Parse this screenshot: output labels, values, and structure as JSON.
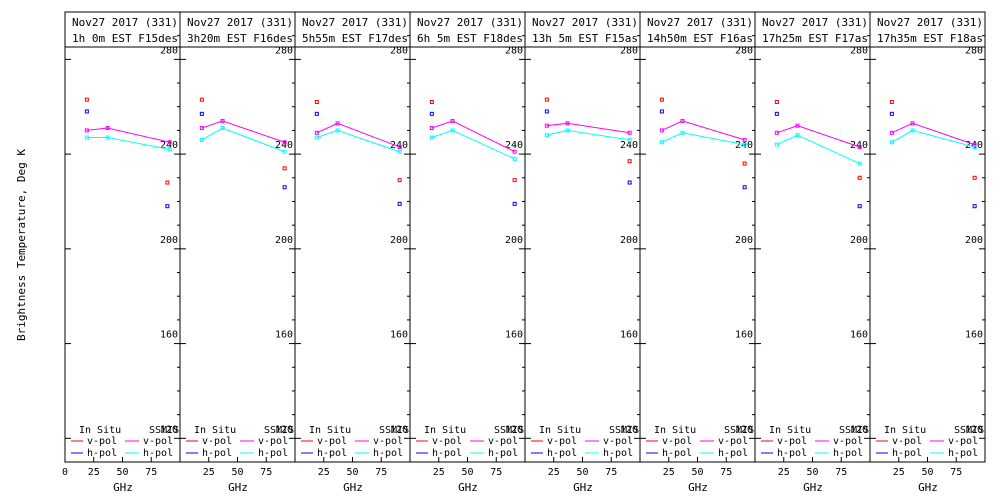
{
  "figure": {
    "ylabel": "Brightness Temperature, Deg K",
    "xlabel": "GHz",
    "colors": {
      "insitu_v": "#ff0000",
      "insitu_h": "#0000ff",
      "ssmis_v": "#ff00ff",
      "ssmis_h": "#00ffff"
    },
    "legend": {
      "insitu": "In Situ",
      "ssmis": "SSMIS",
      "vpol": "v-pol",
      "hpol": "h-pol"
    }
  },
  "chart_data": [
    {
      "type": "scatter",
      "title_line1": "Nov27 2017 (331)",
      "title_line2": "1h 0m  EST F15des",
      "xlim": [
        0,
        100
      ],
      "ylim": [
        110,
        300
      ],
      "xticks": [
        0,
        25,
        50,
        75
      ],
      "yticks": [
        120,
        160,
        200,
        240,
        280
      ],
      "insitu": {
        "freqs": [
          19,
          19,
          89,
          89
        ],
        "v": [
          263,
          228
        ],
        "h": [
          258,
          218
        ],
        "vx": [
          19,
          89
        ],
        "hx": [
          19,
          89
        ]
      },
      "ssmis": {
        "x": [
          19,
          37,
          91
        ],
        "v": [
          250,
          251,
          245
        ],
        "h": [
          247,
          247,
          242
        ]
      }
    },
    {
      "type": "scatter",
      "title_line1": "Nov27 2017 (331)",
      "title_line2": "3h20m  EST F16des",
      "xlim": [
        0,
        100
      ],
      "ylim": [
        110,
        300
      ],
      "xticks": [
        25,
        50,
        75
      ],
      "yticks": [
        120,
        160,
        200,
        240,
        280
      ],
      "insitu": {
        "v": [
          263,
          234
        ],
        "h": [
          257,
          226
        ],
        "vx": [
          19,
          91
        ],
        "hx": [
          19,
          91
        ]
      },
      "ssmis": {
        "x": [
          19,
          37,
          91
        ],
        "v": [
          251,
          254,
          245
        ],
        "h": [
          246,
          251,
          241
        ]
      }
    },
    {
      "type": "scatter",
      "title_line1": "Nov27 2017 (331)",
      "title_line2": "5h55m  EST F17des",
      "xlim": [
        0,
        100
      ],
      "ylim": [
        110,
        300
      ],
      "xticks": [
        25,
        50,
        75
      ],
      "yticks": [
        120,
        160,
        200,
        240,
        280
      ],
      "insitu": {
        "v": [
          262,
          229
        ],
        "h": [
          257,
          219
        ],
        "vx": [
          19,
          91
        ],
        "hx": [
          19,
          91
        ]
      },
      "ssmis": {
        "x": [
          19,
          37,
          91
        ],
        "v": [
          249,
          253,
          243
        ],
        "h": [
          247,
          250,
          241
        ]
      }
    },
    {
      "type": "scatter",
      "title_line1": "Nov27 2017 (331)",
      "title_line2": "6h 5m  EST F18des",
      "xlim": [
        0,
        100
      ],
      "ylim": [
        110,
        300
      ],
      "xticks": [
        25,
        50,
        75
      ],
      "yticks": [
        120,
        160,
        200,
        240,
        280
      ],
      "insitu": {
        "v": [
          262,
          229
        ],
        "h": [
          257,
          219
        ],
        "vx": [
          19,
          91
        ],
        "hx": [
          19,
          91
        ]
      },
      "ssmis": {
        "x": [
          19,
          37,
          91
        ],
        "v": [
          251,
          254,
          241
        ],
        "h": [
          247,
          250,
          238
        ]
      }
    },
    {
      "type": "scatter",
      "title_line1": "Nov27 2017 (331)",
      "title_line2": "13h 5m  EST F15asc",
      "xlim": [
        0,
        100
      ],
      "ylim": [
        110,
        300
      ],
      "xticks": [
        25,
        50,
        75
      ],
      "yticks": [
        120,
        160,
        200,
        240,
        280
      ],
      "insitu": {
        "v": [
          263,
          237
        ],
        "h": [
          258,
          228
        ],
        "vx": [
          19,
          91
        ],
        "hx": [
          19,
          91
        ]
      },
      "ssmis": {
        "x": [
          19,
          37,
          91
        ],
        "v": [
          252,
          253,
          249
        ],
        "h": [
          248,
          250,
          246
        ]
      }
    },
    {
      "type": "scatter",
      "title_line1": "Nov27 2017 (331)",
      "title_line2": "14h50m  EST F16asc",
      "xlim": [
        0,
        100
      ],
      "ylim": [
        110,
        300
      ],
      "xticks": [
        25,
        50,
        75
      ],
      "yticks": [
        120,
        160,
        200,
        240,
        280
      ],
      "insitu": {
        "v": [
          263,
          236
        ],
        "h": [
          258,
          226
        ],
        "vx": [
          19,
          91
        ],
        "hx": [
          19,
          91
        ]
      },
      "ssmis": {
        "x": [
          19,
          37,
          91
        ],
        "v": [
          250,
          254,
          246
        ],
        "h": [
          245,
          249,
          244
        ]
      }
    },
    {
      "type": "scatter",
      "title_line1": "Nov27 2017 (331)",
      "title_line2": "17h25m  EST F17asc",
      "xlim": [
        0,
        100
      ],
      "ylim": [
        110,
        300
      ],
      "xticks": [
        25,
        50,
        75
      ],
      "yticks": [
        120,
        160,
        200,
        240,
        280
      ],
      "insitu": {
        "v": [
          262,
          230
        ],
        "h": [
          257,
          218
        ],
        "vx": [
          19,
          91
        ],
        "hx": [
          19,
          91
        ]
      },
      "ssmis": {
        "x": [
          19,
          37,
          91
        ],
        "v": [
          249,
          252,
          243
        ],
        "h": [
          244,
          248,
          236
        ]
      }
    },
    {
      "type": "scatter",
      "title_line1": "Nov27 2017 (331)",
      "title_line2": "17h35m  EST F18asc",
      "xlim": [
        0,
        100
      ],
      "ylim": [
        110,
        300
      ],
      "xticks": [
        25,
        50,
        75
      ],
      "yticks": [
        120,
        160,
        200,
        240,
        280
      ],
      "insitu": {
        "v": [
          262,
          230
        ],
        "h": [
          257,
          218
        ],
        "vx": [
          19,
          91
        ],
        "hx": [
          19,
          91
        ]
      },
      "ssmis": {
        "x": [
          19,
          37,
          91
        ],
        "v": [
          249,
          253,
          244
        ],
        "h": [
          245,
          250,
          243
        ]
      }
    }
  ]
}
